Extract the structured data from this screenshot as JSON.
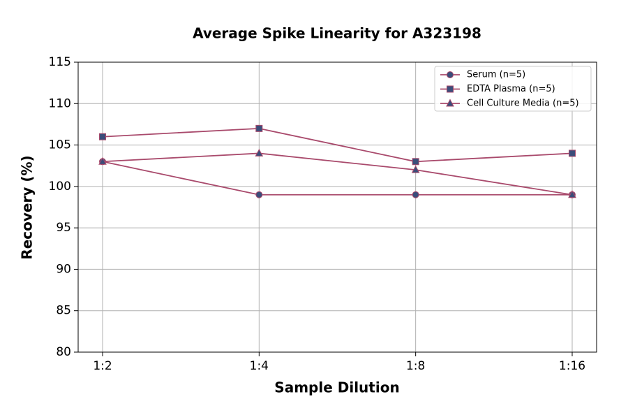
{
  "chart_data": {
    "type": "line",
    "title": "Average Spike Linearity for A323198",
    "x_label": "Sample Dilution",
    "y_label": "Recovery (%)",
    "categories": [
      "1:2",
      "1:4",
      "1:8",
      "1:16"
    ],
    "series": [
      {
        "name": "Serum (n=5)",
        "color": "#a94a6c",
        "marker": "circle",
        "values": [
          103,
          99,
          99,
          99
        ]
      },
      {
        "name": "EDTA Plasma (n=5)",
        "color": "#a94a6c",
        "marker": "square",
        "values": [
          106,
          107,
          103,
          104
        ]
      },
      {
        "name": "Cell Culture Media (n=5)",
        "color": "#a94a6c",
        "marker": "triangle",
        "values": [
          103,
          104,
          102,
          99
        ]
      }
    ],
    "marker_color": "#3b4d7a",
    "ylim": [
      80,
      115
    ],
    "yticks": [
      80,
      85,
      90,
      95,
      100,
      105,
      110,
      115
    ],
    "grid": true,
    "legend": "upper right"
  }
}
